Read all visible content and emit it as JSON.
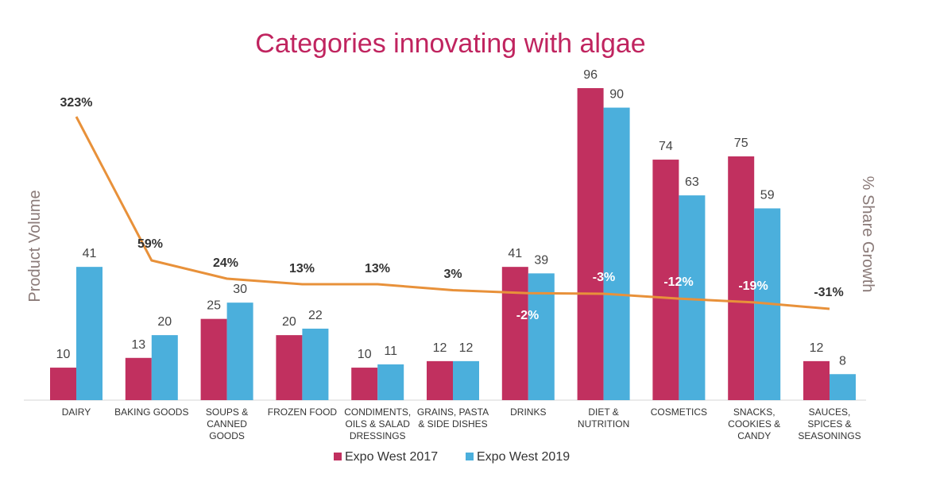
{
  "chart_data": {
    "type": "bar",
    "title": "Categories innovating with algae",
    "ylabel": "Product Volume",
    "y2label": "% Share Growth",
    "ylim": [
      0,
      100
    ],
    "y2lim": [
      -50,
      350
    ],
    "categories": [
      [
        "DAIRY"
      ],
      [
        "BAKING GOODS"
      ],
      [
        "SOUPS &",
        "CANNED",
        "GOODS"
      ],
      [
        "FROZEN FOOD"
      ],
      [
        "CONDIMENTS,",
        "OILS & SALAD",
        "DRESSINGS"
      ],
      [
        "GRAINS, PASTA",
        "& SIDE DISHES"
      ],
      [
        "DRINKS"
      ],
      [
        "DIET &",
        "NUTRITION"
      ],
      [
        "COSMETICS"
      ],
      [
        "SNACKS,",
        "COOKIES &",
        "CANDY"
      ],
      [
        "SAUCES,",
        "SPICES &",
        "SEASONINGS"
      ]
    ],
    "series": [
      {
        "name": "Expo West 2017",
        "color": "#C1305F",
        "values": [
          10,
          13,
          25,
          20,
          10,
          12,
          41,
          96,
          74,
          75,
          12
        ]
      },
      {
        "name": "Expo West 2019",
        "color": "#4BAFDC",
        "values": [
          41,
          20,
          30,
          22,
          11,
          12,
          39,
          90,
          63,
          59,
          8
        ]
      }
    ],
    "growth": {
      "name": "% Share Growth",
      "color": "#E8913A",
      "values": [
        323,
        59,
        24,
        13,
        13,
        3,
        -2,
        -3,
        -12,
        -19,
        -31
      ],
      "labels": [
        "323%",
        "59%",
        "24%",
        "13%",
        "13%",
        "3%",
        "-2%",
        "-3%",
        "-12%",
        "-19%",
        "-31%"
      ]
    },
    "legend_position": "bottom",
    "grid": false
  }
}
